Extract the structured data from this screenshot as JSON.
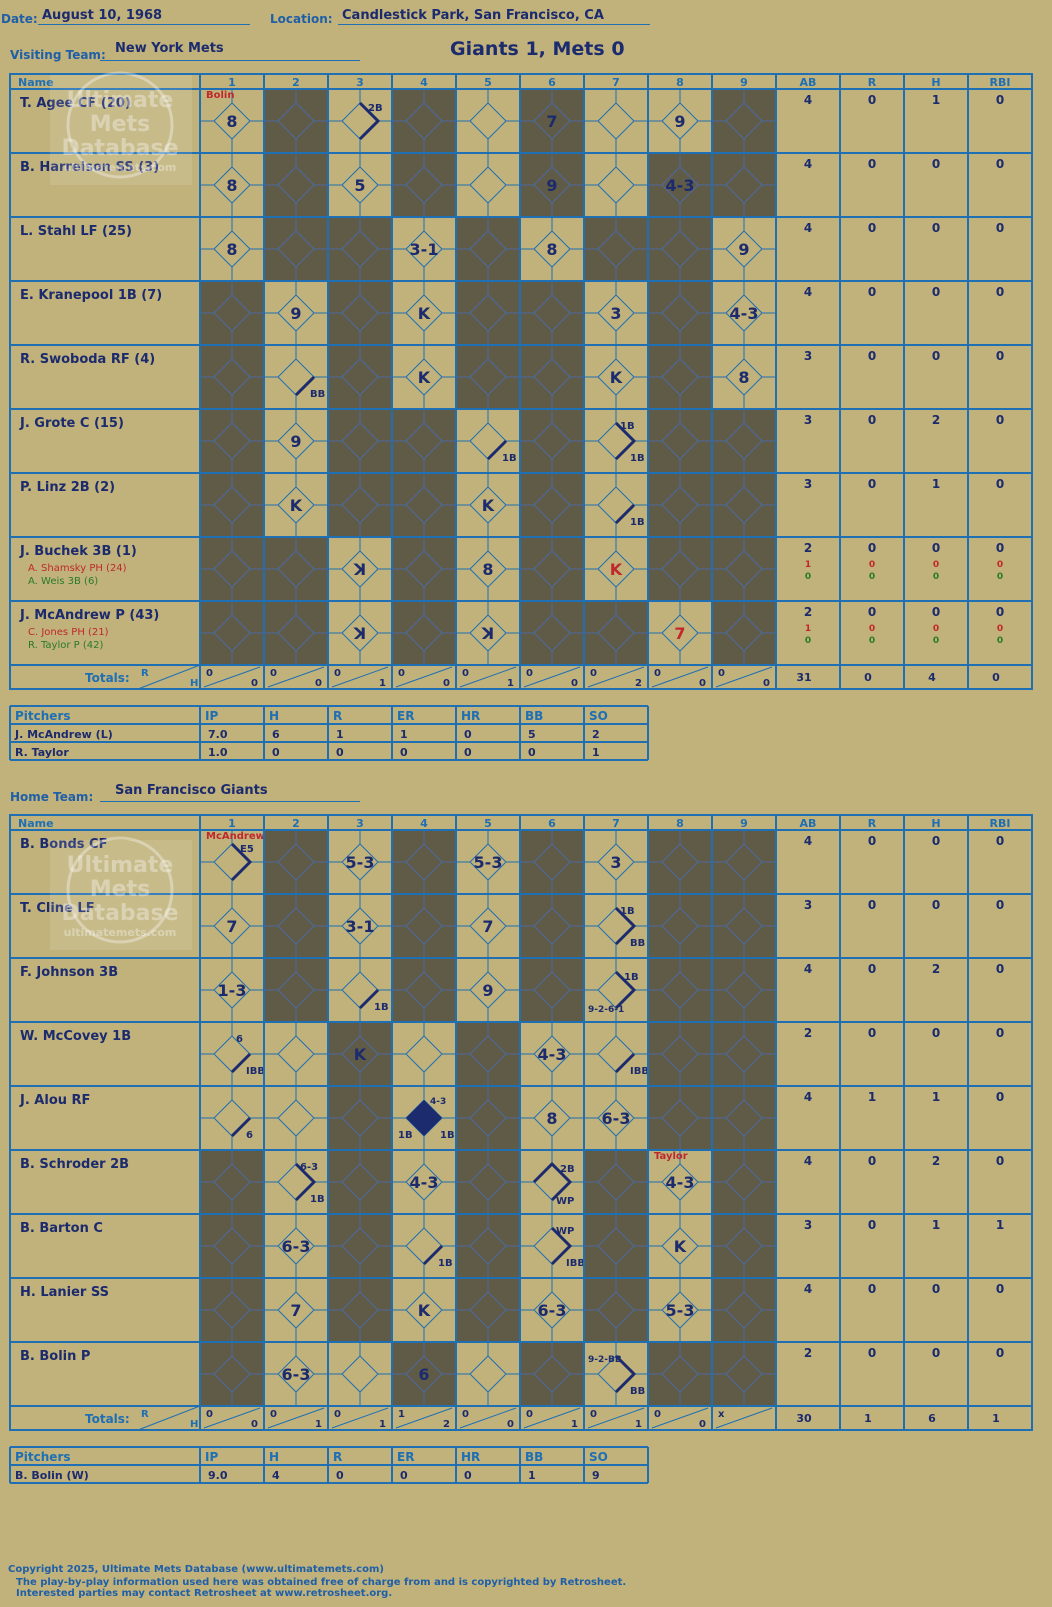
{
  "header": {
    "date_label": "Date:",
    "date": "August 10, 1968",
    "location_label": "Location:",
    "location": "Candlestick Park, San Francisco, CA",
    "visiting_label": "Visiting Team:",
    "visiting_team": "New York Mets",
    "home_label": "Home Team:",
    "home_team": "San Francisco Giants",
    "result": "Giants 1, Mets 0"
  },
  "columns": {
    "name": "Name",
    "innings": [
      "1",
      "2",
      "3",
      "4",
      "5",
      "6",
      "7",
      "8",
      "9"
    ],
    "stats": [
      "AB",
      "R",
      "H",
      "RBI"
    ]
  },
  "watermark": {
    "line1": "Ultimate",
    "line2": "Mets",
    "line3": "Database",
    "url": "ultimatemets.com"
  },
  "totals_label": "Totals:",
  "r_label": "R",
  "h_label": "H",
  "pitcher_headers": [
    "Pitchers",
    "IP",
    "H",
    "R",
    "ER",
    "HR",
    "BB",
    "SO"
  ],
  "visiting": {
    "players": [
      {
        "name": "T. Agee CF (20)",
        "stats": [
          "4",
          "0",
          "1",
          "0"
        ]
      },
      {
        "name": "B. Harrelson SS (3)",
        "stats": [
          "4",
          "0",
          "0",
          "0"
        ]
      },
      {
        "name": "L. Stahl LF (25)",
        "stats": [
          "4",
          "0",
          "0",
          "0"
        ]
      },
      {
        "name": "E. Kranepool 1B (7)",
        "stats": [
          "4",
          "0",
          "0",
          "0"
        ]
      },
      {
        "name": "R. Swoboda RF (4)",
        "stats": [
          "3",
          "0",
          "0",
          "0"
        ]
      },
      {
        "name": "J. Grote C (15)",
        "stats": [
          "3",
          "0",
          "2",
          "0"
        ]
      },
      {
        "name": "P. Linz 2B (2)",
        "stats": [
          "3",
          "0",
          "1",
          "0"
        ]
      },
      {
        "name": "J. Buchek 3B (1)",
        "stats": [
          "2",
          "0",
          "0",
          "0"
        ],
        "subs": [
          {
            "name": "A. Shamsky PH (24)",
            "stats": [
              "1",
              "0",
              "0",
              "0"
            ],
            "color": "#c0282d"
          },
          {
            "name": "A. Weis 3B (6)",
            "stats": [
              "0",
              "0",
              "0",
              "0"
            ],
            "color": "#2a7a2a"
          }
        ]
      },
      {
        "name": "J. McAndrew P (43)",
        "stats": [
          "2",
          "0",
          "0",
          "0"
        ],
        "subs": [
          {
            "name": "C. Jones PH (21)",
            "stats": [
              "1",
              "0",
              "0",
              "0"
            ],
            "color": "#c0282d"
          },
          {
            "name": "R. Taylor P (42)",
            "stats": [
              "0",
              "0",
              "0",
              "0"
            ],
            "color": "#2a7a2a"
          }
        ]
      }
    ],
    "dark": [
      [
        2,
        4,
        6,
        9
      ],
      [
        2,
        4,
        6,
        8,
        9
      ],
      [
        2,
        3,
        5,
        7,
        8
      ],
      [
        1,
        3,
        5,
        6,
        8
      ],
      [
        1,
        3,
        5,
        6,
        8
      ],
      [
        1,
        3,
        4,
        6,
        8,
        9
      ],
      [
        1,
        3,
        4,
        6,
        8,
        9
      ],
      [
        1,
        2,
        4,
        6,
        8,
        9
      ],
      [
        1,
        2,
        4,
        6,
        7,
        9
      ]
    ],
    "plays": [
      {
        "r": 0,
        "c": 1,
        "t": "8",
        "hit": 0
      },
      {
        "r": 0,
        "c": 3,
        "t": "2B",
        "hit": 2,
        "pos": "tr"
      },
      {
        "r": 0,
        "c": 6,
        "t": "7",
        "hit": 0
      },
      {
        "r": 0,
        "c": 8,
        "t": "9",
        "hit": 0
      },
      {
        "r": 1,
        "c": 1,
        "t": "8",
        "hit": 0
      },
      {
        "r": 1,
        "c": 3,
        "t": "5",
        "hit": 0
      },
      {
        "r": 1,
        "c": 6,
        "t": "9",
        "hit": 0
      },
      {
        "r": 1,
        "c": 8,
        "t": "4-3",
        "hit": 0
      },
      {
        "r": 2,
        "c": 1,
        "t": "8",
        "hit": 0
      },
      {
        "r": 2,
        "c": 4,
        "t": "3-1",
        "hit": 0
      },
      {
        "r": 2,
        "c": 6,
        "t": "8",
        "hit": 0
      },
      {
        "r": 2,
        "c": 9,
        "t": "9",
        "hit": 0
      },
      {
        "r": 3,
        "c": 2,
        "t": "9",
        "hit": 0
      },
      {
        "r": 3,
        "c": 4,
        "t": "K",
        "hit": 0
      },
      {
        "r": 3,
        "c": 7,
        "t": "3",
        "hit": 0
      },
      {
        "r": 3,
        "c": 9,
        "t": "4-3",
        "hit": 0
      },
      {
        "r": 4,
        "c": 2,
        "t": "BB",
        "hit": 1,
        "pos": "br"
      },
      {
        "r": 4,
        "c": 4,
        "t": "K",
        "hit": 0
      },
      {
        "r": 4,
        "c": 7,
        "t": "K",
        "hit": 0
      },
      {
        "r": 4,
        "c": 9,
        "t": "8",
        "hit": 0
      },
      {
        "r": 5,
        "c": 2,
        "t": "9",
        "hit": 0
      },
      {
        "r": 5,
        "c": 5,
        "t": "1B",
        "hit": 1,
        "pos": "br"
      },
      {
        "r": 5,
        "c": 7,
        "t": "1B",
        "hit": 2,
        "pos": "br",
        "extra": "1B"
      },
      {
        "r": 6,
        "c": 2,
        "t": "K",
        "hit": 0
      },
      {
        "r": 6,
        "c": 5,
        "t": "K",
        "hit": 0
      },
      {
        "r": 6,
        "c": 7,
        "t": "1B",
        "hit": 1,
        "pos": "br"
      },
      {
        "r": 7,
        "c": 3,
        "t": "ꓘ",
        "hit": 0
      },
      {
        "r": 7,
        "c": 5,
        "t": "8",
        "hit": 0
      },
      {
        "r": 7,
        "c": 7,
        "t": "K",
        "hit": 0,
        "color": "#c0282d"
      },
      {
        "r": 8,
        "c": 3,
        "t": "ꓘ",
        "hit": 0
      },
      {
        "r": 8,
        "c": 5,
        "t": "ꓘ",
        "hit": 0
      },
      {
        "r": 8,
        "c": 8,
        "t": "7",
        "hit": 0,
        "color": "#c0282d"
      }
    ],
    "pitcher_notes": [
      {
        "r": 0,
        "c": 1,
        "t": "Bolin"
      }
    ],
    "inning_totals": [
      [
        "0",
        "0"
      ],
      [
        "0",
        "0"
      ],
      [
        "0",
        "1"
      ],
      [
        "0",
        "0"
      ],
      [
        "0",
        "1"
      ],
      [
        "0",
        "0"
      ],
      [
        "0",
        "2"
      ],
      [
        "0",
        "0"
      ],
      [
        "0",
        "0"
      ]
    ],
    "team_totals": [
      "31",
      "0",
      "4",
      "0"
    ],
    "pitchers": [
      {
        "name": "J. McAndrew (L)",
        "stats": [
          "7.0",
          "6",
          "1",
          "1",
          "0",
          "5",
          "2"
        ]
      },
      {
        "name": "R. Taylor",
        "stats": [
          "1.0",
          "0",
          "0",
          "0",
          "0",
          "0",
          "1"
        ]
      }
    ]
  },
  "home": {
    "players": [
      {
        "name": "B. Bonds CF",
        "stats": [
          "4",
          "0",
          "0",
          "0"
        ]
      },
      {
        "name": "T. Cline LF",
        "stats": [
          "3",
          "0",
          "0",
          "0"
        ]
      },
      {
        "name": "F. Johnson 3B",
        "stats": [
          "4",
          "0",
          "2",
          "0"
        ]
      },
      {
        "name": "W. McCovey 1B",
        "stats": [
          "2",
          "0",
          "0",
          "0"
        ]
      },
      {
        "name": "J. Alou RF",
        "stats": [
          "4",
          "1",
          "1",
          "0"
        ]
      },
      {
        "name": "B. Schroder 2B",
        "stats": [
          "4",
          "0",
          "2",
          "0"
        ]
      },
      {
        "name": "B. Barton C",
        "stats": [
          "3",
          "0",
          "1",
          "1"
        ]
      },
      {
        "name": "H. Lanier SS",
        "stats": [
          "4",
          "0",
          "0",
          "0"
        ]
      },
      {
        "name": "B. Bolin P",
        "stats": [
          "2",
          "0",
          "0",
          "0"
        ]
      }
    ],
    "dark": [
      [
        2,
        4,
        6,
        8,
        9
      ],
      [
        2,
        4,
        6,
        8,
        9
      ],
      [
        2,
        4,
        6,
        8,
        9
      ],
      [
        3,
        5,
        8,
        9
      ],
      [
        3,
        5,
        8,
        9
      ],
      [
        1,
        3,
        5,
        7,
        9
      ],
      [
        1,
        3,
        5,
        7,
        9
      ],
      [
        1,
        3,
        5,
        7,
        9
      ],
      [
        1,
        4,
        6,
        8,
        9
      ]
    ],
    "plays": [
      {
        "r": 0,
        "c": 1,
        "t": "E5",
        "hit": 2,
        "pos": "tr"
      },
      {
        "r": 0,
        "c": 3,
        "t": "5-3",
        "hit": 0
      },
      {
        "r": 0,
        "c": 5,
        "t": "5-3",
        "hit": 0
      },
      {
        "r": 0,
        "c": 7,
        "t": "3",
        "hit": 0
      },
      {
        "r": 1,
        "c": 1,
        "t": "7",
        "hit": 0
      },
      {
        "r": 1,
        "c": 3,
        "t": "3-1",
        "hit": 0
      },
      {
        "r": 1,
        "c": 5,
        "t": "7",
        "hit": 0
      },
      {
        "r": 1,
        "c": 7,
        "t": "BB",
        "hit": 2,
        "pos": "br",
        "extra": "1B"
      },
      {
        "r": 2,
        "c": 1,
        "t": "1-3",
        "hit": 0
      },
      {
        "r": 2,
        "c": 3,
        "t": "1B",
        "hit": 1,
        "pos": "br"
      },
      {
        "r": 2,
        "c": 5,
        "t": "9",
        "hit": 0
      },
      {
        "r": 2,
        "c": 7,
        "t": "1B",
        "hit": 2,
        "pos": "tr",
        "extra": "9-2-6-1"
      },
      {
        "r": 3,
        "c": 1,
        "t": "IBB",
        "hit": 1,
        "pos": "br",
        "extra": "6"
      },
      {
        "r": 3,
        "c": 3,
        "t": "K",
        "hit": 0
      },
      {
        "r": 3,
        "c": 6,
        "t": "4-3",
        "hit": 0
      },
      {
        "r": 3,
        "c": 7,
        "t": "IBB",
        "hit": 1,
        "pos": "br"
      },
      {
        "r": 4,
        "c": 1,
        "t": "6",
        "hit": 1,
        "pos": "br"
      },
      {
        "r": 4,
        "c": 4,
        "t": "1B",
        "hit": 4,
        "pos": "bl",
        "extra": "4-3"
      },
      {
        "r": 4,
        "c": 6,
        "t": "8",
        "hit": 0
      },
      {
        "r": 4,
        "c": 7,
        "t": "6-3",
        "hit": 0
      },
      {
        "r": 5,
        "c": 2,
        "t": "1B",
        "hit": 2,
        "pos": "br",
        "extra": "6-3"
      },
      {
        "r": 5,
        "c": 4,
        "t": "4-3",
        "hit": 0
      },
      {
        "r": 5,
        "c": 6,
        "t": "2B",
        "hit": 3,
        "pos": "tr",
        "extra": "WP"
      },
      {
        "r": 5,
        "c": 8,
        "t": "4-3",
        "hit": 0
      },
      {
        "r": 6,
        "c": 2,
        "t": "6-3",
        "hit": 0
      },
      {
        "r": 6,
        "c": 4,
        "t": "1B",
        "hit": 1,
        "pos": "br"
      },
      {
        "r": 6,
        "c": 6,
        "t": "IBB",
        "hit": 2,
        "pos": "br",
        "extra": "WP"
      },
      {
        "r": 6,
        "c": 8,
        "t": "K",
        "hit": 0
      },
      {
        "r": 7,
        "c": 2,
        "t": "7",
        "hit": 0
      },
      {
        "r": 7,
        "c": 4,
        "t": "K",
        "hit": 0
      },
      {
        "r": 7,
        "c": 6,
        "t": "6-3",
        "hit": 0
      },
      {
        "r": 7,
        "c": 8,
        "t": "5-3",
        "hit": 0
      },
      {
        "r": 8,
        "c": 2,
        "t": "6-3",
        "hit": 0
      },
      {
        "r": 8,
        "c": 4,
        "t": "6",
        "hit": 0
      },
      {
        "r": 8,
        "c": 7,
        "t": "BB",
        "hit": 2,
        "pos": "br",
        "extra": "9-2-BB"
      }
    ],
    "pitcher_notes": [
      {
        "r": 0,
        "c": 1,
        "t": "McAndrew"
      },
      {
        "r": 5,
        "c": 8,
        "t": "Taylor"
      }
    ],
    "inning_totals": [
      [
        "0",
        "0"
      ],
      [
        "0",
        "1"
      ],
      [
        "0",
        "1"
      ],
      [
        "1",
        "2"
      ],
      [
        "0",
        "0"
      ],
      [
        "0",
        "1"
      ],
      [
        "0",
        "1"
      ],
      [
        "0",
        "0"
      ],
      [
        "x",
        ""
      ]
    ],
    "team_totals": [
      "30",
      "1",
      "6",
      "1"
    ],
    "pitchers": [
      {
        "name": "B. Bolin (W)",
        "stats": [
          "9.0",
          "4",
          "0",
          "0",
          "0",
          "1",
          "9"
        ]
      }
    ]
  },
  "footer": {
    "line1": "Copyright 2025, Ultimate Mets Database (www.ultimatemets.com)",
    "line2": "The play-by-play information used here was obtained free of charge from and is copyrighted by Retrosheet.",
    "line3": "Interested parties may contact Retrosheet at www.retrosheet.org."
  },
  "colors": {
    "paper": "#c0b27a",
    "dark": "#5f5b47",
    "grid": "#1f6fb4",
    "ink": "#1c2a6e",
    "red": "#c0282d",
    "green": "#2a7a2a"
  }
}
